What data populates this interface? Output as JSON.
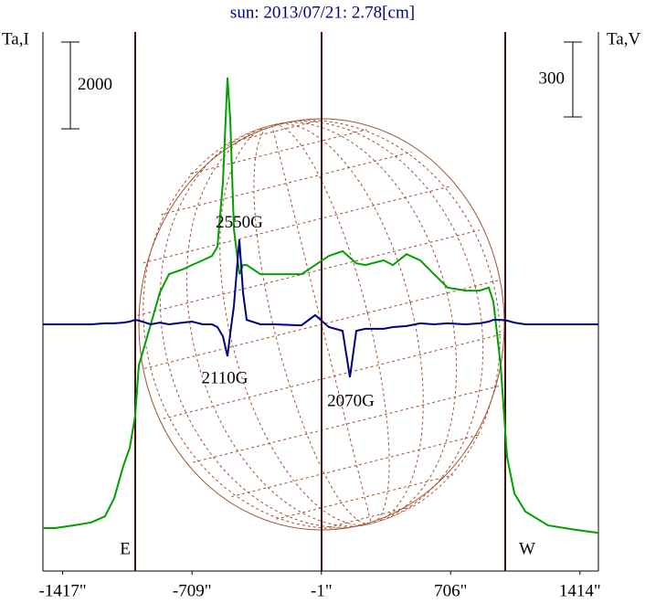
{
  "chart_data": {
    "type": "line",
    "title": "sun: 2013/07/21: 2.78[cm]",
    "ylabel": "Ta,I",
    "y2label": "Ta,V",
    "x": [
      -1525,
      -1460,
      -1360,
      -1260,
      -1185,
      -1135,
      -1085,
      -1050,
      -1020,
      -1000,
      -935,
      -885,
      -835,
      -760,
      -710,
      -650,
      -600,
      -570,
      -540,
      -515,
      -500,
      -480,
      -450,
      -430,
      -410,
      -335,
      -260,
      -110,
      -35,
      40,
      115,
      155,
      190,
      240,
      340,
      390,
      465,
      540,
      615,
      690,
      790,
      865,
      915,
      940,
      980,
      1015,
      1055,
      1115,
      1240,
      1390,
      1515
    ],
    "series": [
      {
        "name": "I",
        "color": "#00a000",
        "values": [
          990,
          990,
          1050,
          1120,
          1260,
          1680,
          2420,
          2840,
          3580,
          4740,
          5680,
          6420,
          6840,
          6950,
          7050,
          7160,
          7260,
          7470,
          8950,
          11370,
          10420,
          7890,
          6840,
          7050,
          7050,
          6840,
          6840,
          6840,
          7050,
          7260,
          7370,
          7220,
          7090,
          7050,
          7160,
          7050,
          7300,
          7160,
          6840,
          6530,
          6460,
          6460,
          6530,
          6210,
          4740,
          2630,
          1790,
          1370,
          1050,
          950,
          880
        ]
      },
      {
        "name": "V",
        "color": "#000080",
        "axis": "y2",
        "values": [
          0,
          0,
          0,
          0,
          4,
          4,
          7,
          11,
          18,
          15,
          0,
          7,
          0,
          7,
          11,
          0,
          0,
          -11,
          -48,
          -128,
          -37,
          73,
          340,
          128,
          18,
          0,
          0,
          -4,
          37,
          -11,
          -26,
          -212,
          -26,
          -18,
          -18,
          -11,
          -7,
          4,
          0,
          4,
          0,
          4,
          11,
          18,
          18,
          15,
          7,
          0,
          0,
          0,
          0
        ]
      }
    ],
    "xlim": [
      -1525,
      1515
    ],
    "xticks": [
      {
        "value": -1417,
        "label": "-1417\""
      },
      {
        "value": -709,
        "label": "-709\""
      },
      {
        "value": -1,
        "label": "-1\""
      },
      {
        "value": 706,
        "label": "706\""
      },
      {
        "value": 1414,
        "label": "1414\""
      }
    ],
    "ylim": [
      0,
      12420
    ],
    "y2lim": [
      -988,
      1171
    ],
    "scale_bar": 2000,
    "scale_bar_y2": 300,
    "vlines": [
      -1020,
      0,
      1005
    ],
    "vline_color": "#4a1010",
    "annotations": [
      {
        "text": "2550G",
        "x": -450,
        "y": 8010
      },
      {
        "text": "2110G",
        "x": -530,
        "y": 4420
      },
      {
        "text": "2070G",
        "x": 160,
        "y": 3890
      },
      {
        "text": "E",
        "x": -1075,
        "y": 480
      },
      {
        "text": "W",
        "x": 1125,
        "y": 480
      }
    ]
  }
}
